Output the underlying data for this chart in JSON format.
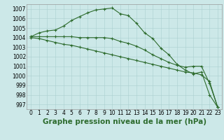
{
  "x": [
    0,
    1,
    2,
    3,
    4,
    5,
    6,
    7,
    8,
    9,
    10,
    11,
    12,
    13,
    14,
    15,
    16,
    17,
    18,
    19,
    20,
    21,
    22,
    23
  ],
  "line1": [
    1004.1,
    1004.5,
    1004.7,
    1004.8,
    1005.2,
    1005.8,
    1006.2,
    1006.6,
    1006.9,
    1007.0,
    1007.1,
    1006.5,
    1006.3,
    1005.5,
    1004.5,
    1003.9,
    1002.9,
    1002.2,
    1001.2,
    1000.6,
    1000.2,
    1000.4,
    998.0,
    996.7
  ],
  "line2": [
    1004.1,
    1004.1,
    1004.1,
    1004.1,
    1004.1,
    1004.1,
    1004.0,
    1004.0,
    1004.0,
    1004.0,
    1003.9,
    1003.6,
    1003.4,
    1003.1,
    1002.7,
    1002.2,
    1001.8,
    1001.4,
    1001.1,
    1000.9,
    1001.0,
    1001.0,
    999.2,
    996.7
  ],
  "line3": [
    1004.0,
    1003.9,
    1003.7,
    1003.5,
    1003.3,
    1003.2,
    1003.0,
    1002.8,
    1002.6,
    1002.4,
    1002.2,
    1002.0,
    1001.8,
    1001.6,
    1001.4,
    1001.2,
    1001.0,
    1000.8,
    1000.6,
    1000.4,
    1000.3,
    1000.1,
    999.4,
    996.7
  ],
  "bg_color": "#cce8e8",
  "grid_color": "#aacfcf",
  "line_color": "#2d6b2d",
  "title": "Graphe pression niveau de la mer (hPa)",
  "ylim_min": 996.5,
  "ylim_max": 1007.5,
  "yticks": [
    997,
    998,
    999,
    1000,
    1001,
    1002,
    1003,
    1004,
    1005,
    1006,
    1007
  ],
  "tick_fontsize": 5.5,
  "xlabel_fontsize": 7.5,
  "marker": "+",
  "markersize": 3.5,
  "markeredgewidth": 0.8,
  "linewidth": 0.8
}
